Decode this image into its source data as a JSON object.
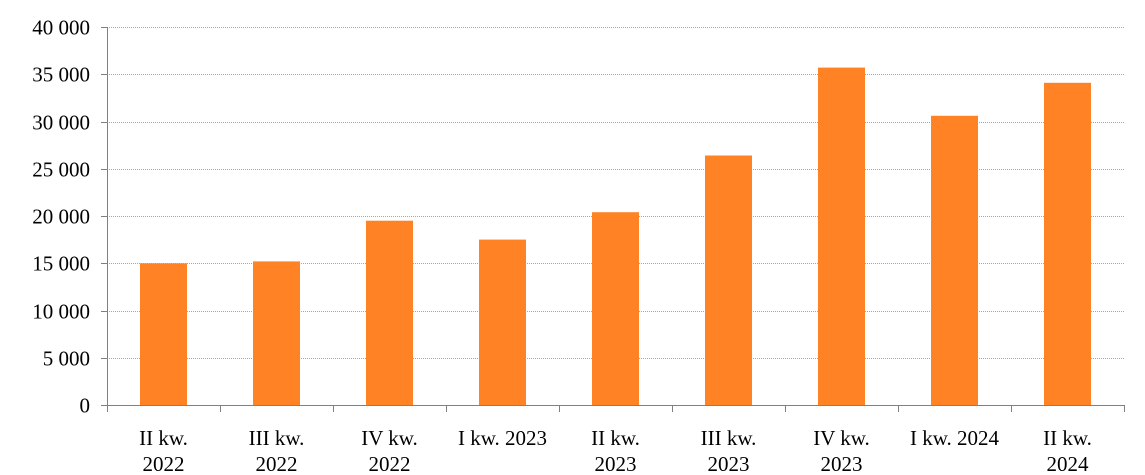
{
  "chart_data": {
    "type": "bar",
    "categories": [
      [
        "II kw.",
        "2022"
      ],
      [
        "III kw.",
        "2022"
      ],
      [
        "IV kw.",
        "2022"
      ],
      [
        "I kw. 2023"
      ],
      [
        "II kw.",
        "2023"
      ],
      [
        "III kw.",
        "2023"
      ],
      [
        "IV kw.",
        "2023"
      ],
      [
        "I kw. 2024"
      ],
      [
        "II kw.",
        "2024"
      ]
    ],
    "values": [
      15000,
      15200,
      19500,
      17500,
      20400,
      26400,
      35700,
      30600,
      34100
    ],
    "y_ticks": [
      "0",
      "5 000",
      "10 000",
      "15 000",
      "20 000",
      "25 000",
      "30 000",
      "35 000",
      "40 000"
    ],
    "ylim": [
      0,
      40000
    ],
    "y_step": 5000,
    "grid": true,
    "bar_color": "#FF8225",
    "grid_color": "#A6A6A6",
    "axis_color": "#808080"
  }
}
